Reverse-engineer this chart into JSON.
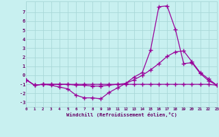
{
  "xlabel": "Windchill (Refroidissement éolien,°C)",
  "background_color": "#c8f0f0",
  "grid_color": "#a8d8d8",
  "line_color": "#990099",
  "marker": "+",
  "x_values": [
    0,
    1,
    2,
    3,
    4,
    5,
    6,
    7,
    8,
    9,
    10,
    11,
    12,
    13,
    14,
    15,
    16,
    17,
    18,
    19,
    20,
    21,
    22,
    23
  ],
  "line1": [
    -0.5,
    -1.1,
    -1.0,
    -1.1,
    -1.3,
    -1.5,
    -2.2,
    -2.5,
    -2.5,
    -2.6,
    -1.9,
    -1.4,
    -0.9,
    -0.2,
    0.3,
    2.8,
    7.6,
    7.7,
    5.1,
    1.3,
    1.4,
    0.2,
    -0.6,
    -1.1
  ],
  "line2": [
    -0.5,
    -1.1,
    -1.0,
    -1.0,
    -1.0,
    -1.0,
    -1.1,
    -1.1,
    -1.2,
    -1.2,
    -1.1,
    -1.0,
    -0.9,
    -0.5,
    0.0,
    0.6,
    1.3,
    2.1,
    2.6,
    2.7,
    1.5,
    0.3,
    -0.4,
    -1.1
  ],
  "line3": [
    -0.5,
    -1.1,
    -1.0,
    -1.0,
    -1.0,
    -1.0,
    -1.0,
    -1.0,
    -1.0,
    -1.0,
    -1.0,
    -1.0,
    -1.0,
    -1.0,
    -1.0,
    -1.0,
    -1.0,
    -1.0,
    -1.0,
    -1.0,
    -1.0,
    -1.0,
    -1.0,
    -1.1
  ],
  "xlim": [
    0,
    23
  ],
  "ylim": [
    -3.5,
    8.2
  ],
  "yticks": [
    -3,
    -2,
    -1,
    0,
    1,
    2,
    3,
    4,
    5,
    6,
    7
  ],
  "xticks": [
    0,
    1,
    2,
    3,
    4,
    5,
    6,
    7,
    8,
    9,
    10,
    11,
    12,
    13,
    14,
    15,
    16,
    17,
    18,
    19,
    20,
    21,
    22,
    23
  ]
}
